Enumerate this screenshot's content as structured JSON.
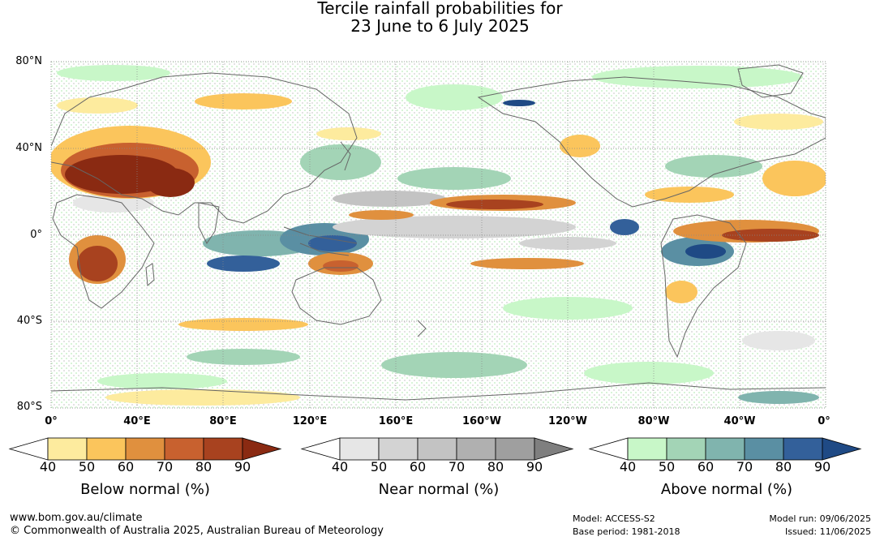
{
  "title": {
    "line1": "Tercile rainfall probabilities for",
    "line2": "23 June to 6 July 2025"
  },
  "map": {
    "lat_labels": [
      "80°N",
      "40°N",
      "0°",
      "40°S",
      "80°S"
    ],
    "lon_labels": [
      "0°",
      "40°E",
      "80°E",
      "120°E",
      "160°E",
      "160°W",
      "120°W",
      "80°W",
      "40°W",
      "0°"
    ],
    "colors": {
      "ocean_bg": "#ffffff",
      "coast": "#666666",
      "grid": "#888888"
    }
  },
  "legends": [
    {
      "name": "below",
      "title": "Below normal (%)",
      "ticks": [
        "40",
        "50",
        "60",
        "70",
        "80",
        "90"
      ],
      "colors": [
        "#ffffff",
        "#fdeb9e",
        "#fbc55c",
        "#e0903e",
        "#c8612f",
        "#a8421f",
        "#8a2a12"
      ]
    },
    {
      "name": "near",
      "title": "Near normal (%)",
      "ticks": [
        "40",
        "50",
        "60",
        "70",
        "80",
        "90"
      ],
      "colors": [
        "#ffffff",
        "#e6e6e6",
        "#d3d3d3",
        "#c3c3c3",
        "#b0b0b0",
        "#9f9f9f",
        "#7f7f7f"
      ]
    },
    {
      "name": "above",
      "title": "Above normal (%)",
      "ticks": [
        "40",
        "50",
        "60",
        "70",
        "80",
        "90"
      ],
      "colors": [
        "#ffffff",
        "#c8f7c8",
        "#a3d4b6",
        "#80b4ae",
        "#5a8fa3",
        "#33609a",
        "#1f4a85"
      ]
    }
  ],
  "footer": {
    "website": "www.bom.gov.au/climate",
    "copyright": "© Commonwealth of Australia 2025, Australian Bureau of Meteorology",
    "model": "Model: ACCESS-S2",
    "base_period": "Base period: 1981-2018",
    "model_run": "Model run: 09/06/2025",
    "issued": "Issued: 11/06/2025"
  }
}
